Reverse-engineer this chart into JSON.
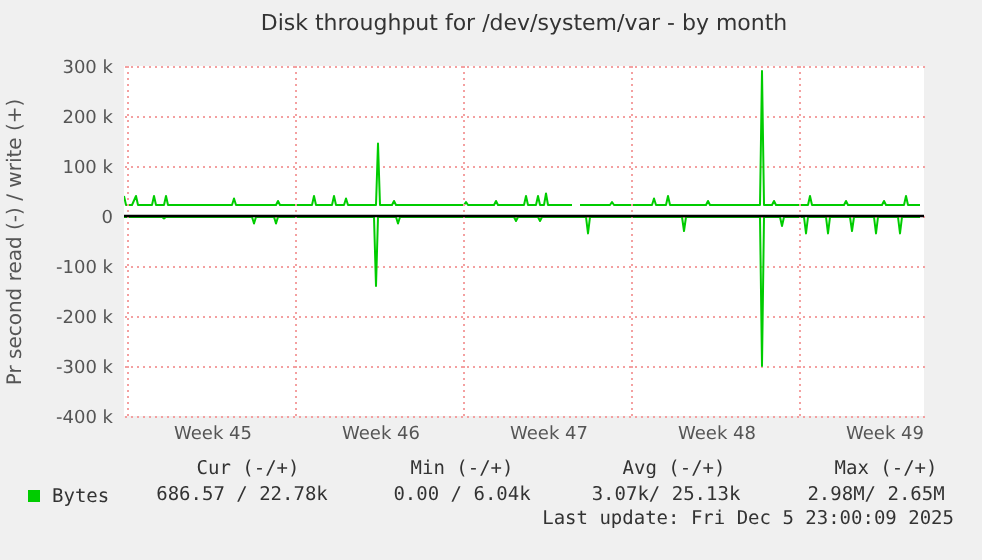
{
  "chart_data": {
    "type": "line",
    "title": "Disk throughput for /dev/system/var - by month",
    "ylabel": "Pr second read (-) / write (+)",
    "xlim": [
      "2025-11-02T20:00",
      "2025-12-06T04:00"
    ],
    "xticks": [
      {
        "value": "2025-11-03T00:00",
        "label": null
      },
      {
        "value": "2025-11-06T12:00",
        "label": "Week 45"
      },
      {
        "value": "2025-11-10T00:00",
        "label": null
      },
      {
        "value": "2025-11-13T12:00",
        "label": "Week 46"
      },
      {
        "value": "2025-11-17T00:00",
        "label": null
      },
      {
        "value": "2025-11-20T12:00",
        "label": "Week 47"
      },
      {
        "value": "2025-11-24T00:00",
        "label": null
      },
      {
        "value": "2025-11-27T12:00",
        "label": "Week 48"
      },
      {
        "value": "2025-12-01T00:00",
        "label": null
      },
      {
        "value": "2025-12-04T12:00",
        "label": "Week 49"
      }
    ],
    "ylim": [
      -400000,
      300000
    ],
    "yticks": [
      {
        "value": -400000,
        "label": "-400 k"
      },
      {
        "value": -300000,
        "label": "-300 k"
      },
      {
        "value": -200000,
        "label": "-200 k"
      },
      {
        "value": -100000,
        "label": "-100 k"
      },
      {
        "value": 0,
        "label": "0"
      },
      {
        "value": 100000,
        "label": "100 k"
      },
      {
        "value": 200000,
        "label": "200 k"
      },
      {
        "value": 300000,
        "label": "300 k"
      }
    ],
    "grid": true,
    "legend": "bottom left",
    "marker": "none",
    "line_style": "solid",
    "ref_lines": [
      {
        "axis": "y",
        "value": 0,
        "color": "#000000"
      }
    ],
    "series": [
      {
        "color": "#00cc00",
        "x": [
          "2025-11-02T20:00",
          "2025-11-04T10:00",
          "2025-11-04T12:00",
          "2025-11-04T14:00",
          "2025-11-08T04:00",
          "2025-11-08T06:00",
          "2025-11-08T08:00",
          "2025-11-09T02:00",
          "2025-11-09T04:00",
          "2025-11-09T06:00",
          "2025-11-13T06:00",
          "2025-11-13T08:00",
          "2025-11-13T10:00",
          "2025-11-14T04:00",
          "2025-11-14T06:00",
          "2025-11-14T08:00",
          "2025-11-19T02:00",
          "2025-11-19T04:00",
          "2025-11-19T06:00",
          "2025-11-20T02:00",
          "2025-11-20T04:00",
          "2025-11-20T06:00",
          "2025-11-22T02:00",
          "2025-11-22T04:00",
          "2025-11-22T06:00",
          "2025-11-26T02:00",
          "2025-11-26T04:00",
          "2025-11-26T06:00",
          "2025-11-29T08:00",
          "2025-11-29T10:00",
          "2025-11-29T12:00",
          "2025-11-30T04:00",
          "2025-11-30T06:00",
          "2025-11-30T08:00",
          "2025-12-01T04:00",
          "2025-12-01T06:00",
          "2025-12-01T08:00",
          "2025-12-02T02:00",
          "2025-12-02T04:00",
          "2025-12-02T06:00",
          "2025-12-03T02:00",
          "2025-12-03T04:00",
          "2025-12-03T06:00",
          "2025-12-04T02:00",
          "2025-12-04T04:00",
          "2025-12-04T06:00",
          "2025-12-05T02:00",
          "2025-12-05T04:00",
          "2025-12-05T06:00",
          "2025-12-06T00:00"
        ],
        "values": [
          -2000,
          -2000,
          -5000,
          -2000,
          -2000,
          -15000,
          -2000,
          -2000,
          -15000,
          -2000,
          -2000,
          -140000,
          -2000,
          -2000,
          -15000,
          -2000,
          -2000,
          -10000,
          -2000,
          -2000,
          -10000,
          -2000,
          -2000,
          -35000,
          -2000,
          -2000,
          -30000,
          -2000,
          -2000,
          -300000,
          -2000,
          -2000,
          -20000,
          -2000,
          -2000,
          -35000,
          -2000,
          -2000,
          -35000,
          -2000,
          -2000,
          -30000,
          -2000,
          -2000,
          -35000,
          -2000,
          -2000,
          -35000,
          -2000,
          -2000
        ]
      },
      {
        "name": "Bytes",
        "color": "#00cc00",
        "x": [
          "2025-11-02T20:00",
          "2025-11-02T22:00",
          "2025-11-03T04:00",
          "2025-11-03T08:00",
          "2025-11-03T10:00",
          "2025-11-04T00:00",
          "2025-11-04T02:00",
          "2025-11-04T04:00",
          "2025-11-04T12:00",
          "2025-11-04T14:00",
          "2025-11-04T16:00",
          "2025-11-07T08:00",
          "2025-11-07T10:00",
          "2025-11-07T12:00",
          "2025-11-09T04:00",
          "2025-11-09T06:00",
          "2025-11-09T08:00",
          "2025-11-10T16:00",
          "2025-11-10T18:00",
          "2025-11-10T20:00",
          "2025-11-11T12:00",
          "2025-11-11T14:00",
          "2025-11-11T16:00",
          "2025-11-12T00:00",
          "2025-11-12T02:00",
          "2025-11-12T04:00",
          "2025-11-13T08:00",
          "2025-11-13T10:00",
          "2025-11-13T12:00",
          "2025-11-14T00:00",
          "2025-11-14T02:00",
          "2025-11-14T04:00",
          "2025-11-17T00:00",
          "2025-11-17T02:00",
          "2025-11-17T04:00",
          "2025-11-18T06:00",
          "2025-11-18T08:00",
          "2025-11-18T10:00",
          "2025-11-19T12:00",
          "2025-11-19T14:00",
          "2025-11-19T16:00",
          "2025-11-20T00:00",
          "2025-11-20T02:00",
          "2025-11-20T04:00",
          "2025-11-20T08:00",
          "2025-11-20T10:00",
          "2025-11-20T12:00",
          "2025-11-21T12:00",
          "2025-11-21T16:00",
          "2025-11-21T20:00",
          "2025-11-23T02:00",
          "2025-11-23T04:00",
          "2025-11-23T06:00",
          "2025-11-24T20:00",
          "2025-11-24T22:00",
          "2025-11-25T00:00",
          "2025-11-25T10:00",
          "2025-11-25T12:00",
          "2025-11-25T14:00",
          "2025-11-27T02:00",
          "2025-11-27T04:00",
          "2025-11-27T06:00",
          "2025-11-29T08:00",
          "2025-11-29T10:00",
          "2025-11-29T12:00",
          "2025-11-29T20:00",
          "2025-11-29T22:00",
          "2025-11-30T00:00",
          "2025-12-01T08:00",
          "2025-12-01T10:00",
          "2025-12-01T12:00",
          "2025-12-02T20:00",
          "2025-12-02T22:00",
          "2025-12-03T00:00",
          "2025-12-04T10:00",
          "2025-12-04T12:00",
          "2025-12-04T14:00",
          "2025-12-05T08:00",
          "2025-12-05T10:00",
          "2025-12-05T12:00",
          "2025-12-06T00:00"
        ],
        "values": [
          40000,
          22000,
          22000,
          40000,
          22000,
          22000,
          40000,
          22000,
          22000,
          40000,
          22000,
          22000,
          35000,
          22000,
          22000,
          30000,
          22000,
          22000,
          40000,
          22000,
          22000,
          40000,
          22000,
          22000,
          35000,
          22000,
          22000,
          145000,
          22000,
          22000,
          30000,
          22000,
          22000,
          28000,
          22000,
          22000,
          30000,
          22000,
          22000,
          40000,
          22000,
          22000,
          40000,
          22000,
          22000,
          45000,
          22000,
          22000,
          null,
          22000,
          22000,
          28000,
          22000,
          22000,
          35000,
          22000,
          22000,
          40000,
          22000,
          22000,
          30000,
          22000,
          22000,
          290000,
          22000,
          22000,
          30000,
          22000,
          22000,
          40000,
          22000,
          22000,
          30000,
          22000,
          22000,
          30000,
          22000,
          22000,
          40000,
          22000,
          22000
        ]
      }
    ],
    "annotations": [
      "Cur (-/+)",
      "Min (-/+)",
      "Avg (-/+)",
      "Max (-/+)",
      "686.57 / 22.78k",
      "0.00 /  6.04k",
      "3.07k/ 25.13k",
      "2.98M/  2.65M",
      "Last update: Fri Dec  5 23:00:09 2025"
    ]
  }
}
